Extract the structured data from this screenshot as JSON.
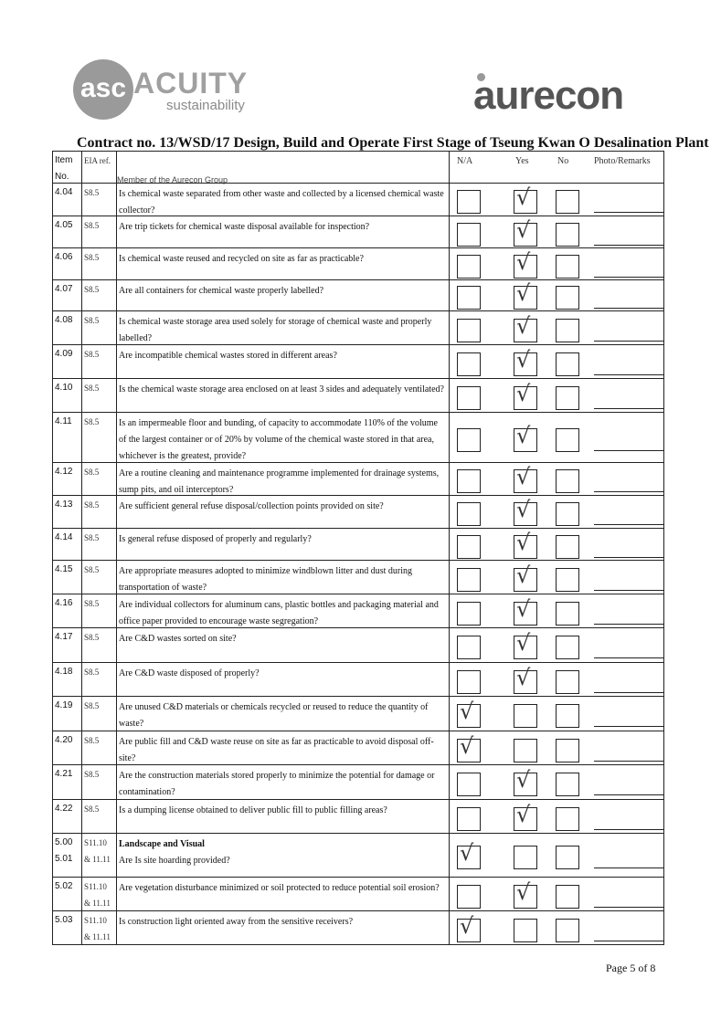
{
  "header": {
    "acuity_logo": {
      "monogram": "asc",
      "name": "ACUITY",
      "sub": "sustainability",
      "member": "Member of the Aurecon Group"
    },
    "aurecon_logo": "aurecon",
    "title": "Contract no. 13/WSD/17 Design, Build and Operate First Stage of Tseung Kwan O Desalination Plant"
  },
  "table": {
    "columns": {
      "item": "Item No.",
      "eia": "EIA ref.",
      "na": "N/A",
      "yes": "Yes",
      "no": "No",
      "remarks": "Photo/Remarks"
    },
    "rows": [
      {
        "item": "4.04",
        "eia": "S8.5",
        "question": "Is chemical waste separated from other waste and collected by a licensed chemical waste collector?",
        "answer": "Yes"
      },
      {
        "item": "4.05",
        "eia": "S8.5",
        "question": "Are trip tickets for chemical waste disposal available for inspection?",
        "answer": "Yes"
      },
      {
        "item": "4.06",
        "eia": "S8.5",
        "question": "Is chemical waste reused and recycled on site as far as practicable?",
        "answer": "Yes"
      },
      {
        "item": "4.07",
        "eia": "S8.5",
        "question": "Are all containers for chemical waste properly labelled?",
        "answer": "Yes"
      },
      {
        "item": "4.08",
        "eia": "S8.5",
        "question": "Is chemical waste storage area used solely for storage of chemical waste and properly labelled?",
        "answer": "Yes"
      },
      {
        "item": "4.09",
        "eia": "S8.5",
        "question": "Are incompatible chemical wastes stored in different areas?",
        "answer": "Yes"
      },
      {
        "item": "4.10",
        "eia": "S8.5",
        "question": "Is the chemical waste storage area enclosed on at least 3 sides and adequately ventilated?",
        "answer": "Yes"
      },
      {
        "item": "4.11",
        "eia": "S8.5",
        "question": "Is an impermeable floor and bunding, of capacity to accommodate 110% of the volume of the largest container or of 20% by volume of the chemical waste stored in that area, whichever is the greatest, provide?",
        "answer": "Yes"
      },
      {
        "item": "4.12",
        "eia": "S8.5",
        "question": "Are a routine cleaning and maintenance programme implemented for drainage systems, sump pits, and oil interceptors?",
        "answer": "Yes"
      },
      {
        "item": "4.13",
        "eia": "S8.5",
        "question": "Are sufficient general refuse disposal/collection points provided on site?",
        "answer": "Yes"
      },
      {
        "item": "4.14",
        "eia": "S8.5",
        "question": "Is general refuse disposed of properly and regularly?",
        "answer": "Yes"
      },
      {
        "item": "4.15",
        "eia": "S8.5",
        "question": "Are appropriate measures adopted to minimize windblown litter and dust during transportation of waste?",
        "answer": "Yes"
      },
      {
        "item": "4.16",
        "eia": "S8.5",
        "question": "Are individual collectors for aluminum cans, plastic bottles and packaging material and office paper provided to encourage waste segregation?",
        "answer": "Yes"
      },
      {
        "item": "4.17",
        "eia": "S8.5",
        "question": "Are C&D wastes sorted on site?",
        "answer": "Yes"
      },
      {
        "item": "4.18",
        "eia": "S8.5",
        "question": "Are C&D waste disposed of properly?",
        "answer": "Yes"
      },
      {
        "item": "4.19",
        "eia": "S8.5",
        "question": "Are unused C&D materials or chemicals recycled or reused to reduce the quantity of waste?",
        "answer": "N/A"
      },
      {
        "item": "4.20",
        "eia": "S8.5",
        "question": "Are public fill and C&D waste reuse on site as far as practicable to avoid disposal off-site?",
        "answer": "N/A"
      },
      {
        "item": "4.21",
        "eia": "S8.5",
        "question": "Are the construction materials stored properly to minimize the potential for damage or contamination?",
        "answer": "Yes"
      },
      {
        "item": "4.22",
        "eia": "S8.5",
        "question": "Is a dumping license obtained to deliver public fill to public filling areas?",
        "answer": "Yes"
      },
      {
        "item": "5.00 5.01",
        "eia": "S11.10 & 11.11",
        "section": "Landscape and Visual",
        "question": "Are Is site hoarding provided?",
        "answer": "N/A"
      },
      {
        "item": "5.02",
        "eia": "S11.10 & 11.11",
        "question": "Are vegetation disturbance minimized or soil protected to reduce potential soil erosion?",
        "answer": "Yes"
      },
      {
        "item": "5.03",
        "eia": "S11.10 & 11.11",
        "question": "Is construction light oriented away from the sensitive receivers?",
        "answer": "N/A"
      }
    ]
  },
  "footer": {
    "page": "Page 5 of 8"
  }
}
